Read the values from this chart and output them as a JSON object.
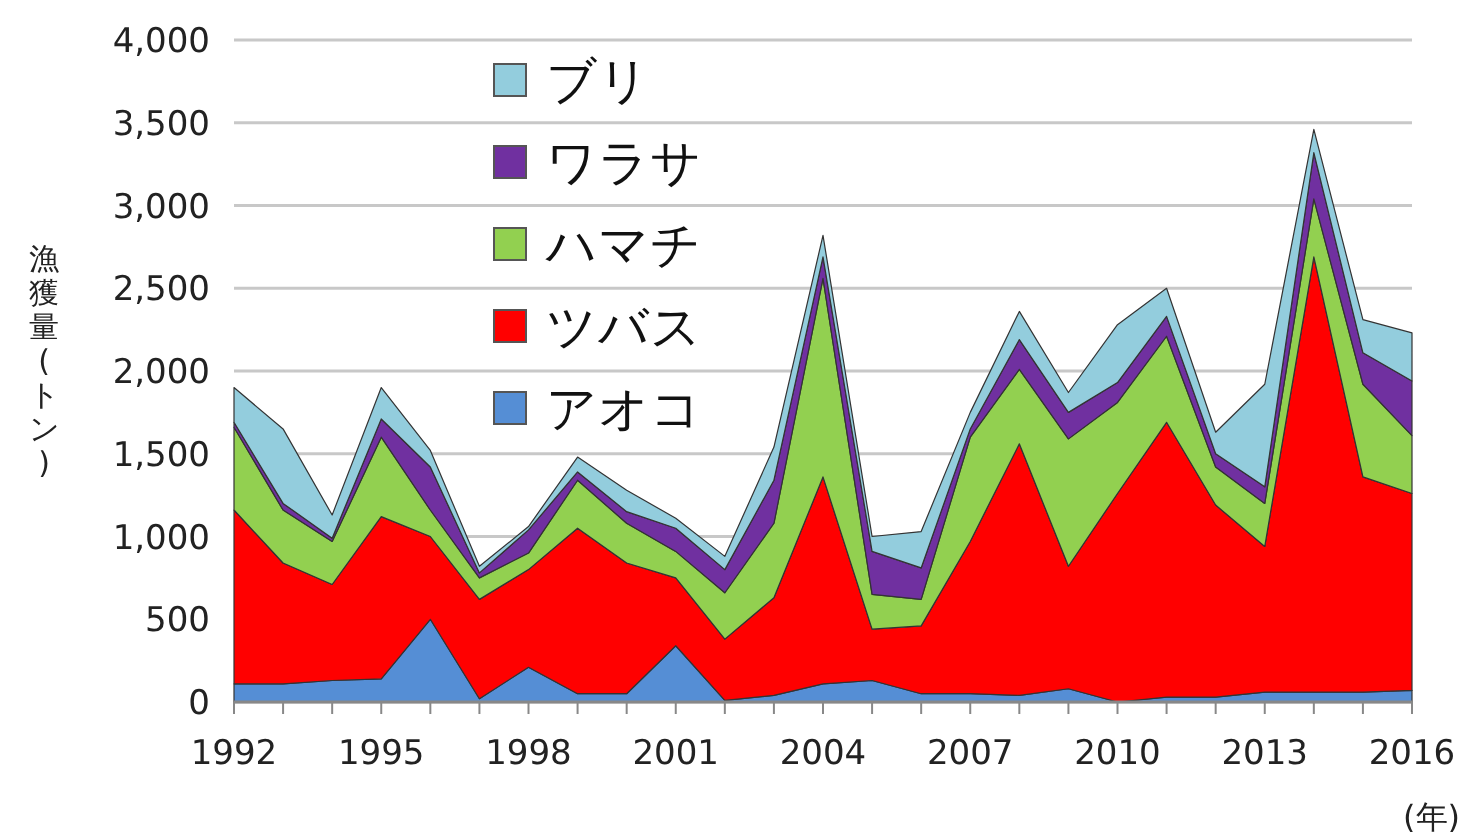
{
  "chart_data": {
    "type": "area",
    "stacked": true,
    "ylabel": "漁獲量(トン)",
    "xlabel": "(年)",
    "x": [
      1992,
      1993,
      1994,
      1995,
      1996,
      1997,
      1998,
      1999,
      2000,
      2001,
      2002,
      2003,
      2004,
      2005,
      2006,
      2007,
      2008,
      2009,
      2010,
      2011,
      2012,
      2013,
      2014,
      2015,
      2016
    ],
    "xlim": [
      1992,
      2016
    ],
    "xticks": [
      1992,
      1995,
      1998,
      2001,
      2004,
      2007,
      2010,
      2013,
      2016
    ],
    "ylim": [
      0,
      4000
    ],
    "yticks": [
      0,
      {
        "value": 500,
        "label": "500"
      },
      {
        "value": 1000,
        "label": "1,000"
      },
      {
        "value": 1500,
        "label": "1,500"
      },
      {
        "value": 2000,
        "label": "2,000"
      },
      {
        "value": 2500,
        "label": "2,500"
      },
      {
        "value": 3000,
        "label": "3,000"
      },
      {
        "value": 3500,
        "label": "3,500"
      },
      {
        "value": 4000,
        "label": "4,000"
      }
    ],
    "grid": "y",
    "legend": "top left",
    "series": [
      {
        "name": "アオコ",
        "color": "#558ed5",
        "values": [
          110,
          110,
          130,
          140,
          500,
          20,
          210,
          50,
          50,
          340,
          10,
          40,
          110,
          130,
          50,
          50,
          40,
          80,
          0,
          30,
          30,
          60,
          60,
          60,
          70
        ]
      },
      {
        "name": "ツバス",
        "color": "#ff0000",
        "values": [
          1050,
          730,
          580,
          980,
          500,
          600,
          590,
          1000,
          790,
          410,
          370,
          590,
          1250,
          310,
          410,
          920,
          1520,
          740,
          1260,
          1660,
          1160,
          880,
          2630,
          1300,
          1190
        ]
      },
      {
        "name": "ハマチ",
        "color": "#92d050",
        "values": [
          500,
          320,
          260,
          480,
          160,
          130,
          100,
          290,
          240,
          160,
          280,
          450,
          1200,
          210,
          160,
          630,
          450,
          770,
          550,
          520,
          230,
          260,
          350,
          560,
          350
        ]
      },
      {
        "name": "ワラサ",
        "color": "#7030a0",
        "values": [
          30,
          40,
          20,
          110,
          260,
          30,
          140,
          50,
          70,
          140,
          140,
          260,
          130,
          260,
          190,
          50,
          180,
          160,
          120,
          120,
          80,
          100,
          280,
          190,
          330
        ]
      },
      {
        "name": "ブリ",
        "color": "#93cddd",
        "values": [
          210,
          450,
          140,
          190,
          100,
          40,
          20,
          90,
          130,
          60,
          80,
          200,
          130,
          90,
          220,
          100,
          170,
          120,
          350,
          170,
          130,
          620,
          140,
          200,
          290
        ]
      }
    ]
  }
}
